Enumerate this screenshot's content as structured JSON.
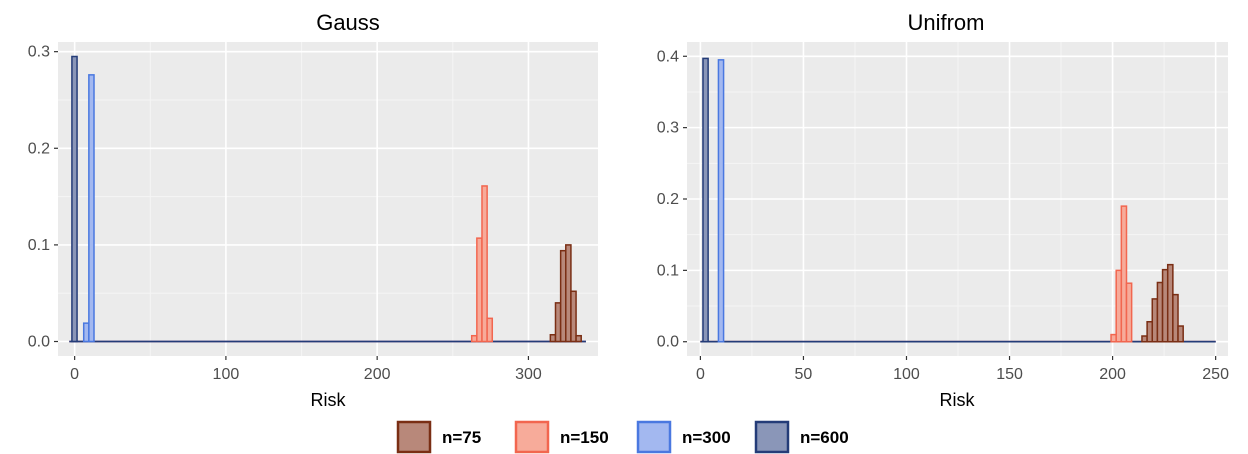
{
  "colors": {
    "panel_bg": "#ebebeb",
    "grid_major": "#ffffff",
    "grid_minor": "#f5f5f5",
    "n75": {
      "fill": "#b8887a",
      "stroke": "#7a2e14"
    },
    "n150": {
      "fill": "#f7ab9a",
      "stroke": "#f2664f"
    },
    "n300": {
      "fill": "#a3b8f0",
      "stroke": "#4a78e0"
    },
    "n600": {
      "fill": "#8a96b8",
      "stroke": "#243c78"
    }
  },
  "legend": [
    {
      "key": "n75",
      "label": "n=75"
    },
    {
      "key": "n150",
      "label": "n=150"
    },
    {
      "key": "n300",
      "label": "n=300"
    },
    {
      "key": "n600",
      "label": "n=600"
    }
  ],
  "chart_data": [
    {
      "type": "bar",
      "title": "Gauss",
      "xlabel": "Risk",
      "ylabel": "",
      "xlim": [
        -11,
        346
      ],
      "ylim": [
        -0.015,
        0.31
      ],
      "xticks": [
        0,
        100,
        200,
        300
      ],
      "yticks": [
        0.0,
        0.1,
        0.2,
        0.3
      ],
      "ytick_labels": [
        "0.0",
        "0.1",
        "0.2",
        "0.3"
      ],
      "bin_width": 3.4,
      "baseline_range": [
        -3.5,
        338
      ],
      "series": [
        {
          "name": "n=75",
          "key": "n75",
          "x": [
            314.5,
            317.9,
            321.3,
            324.7,
            328.1,
            331.5
          ],
          "values": [
            0.007,
            0.04,
            0.094,
            0.1,
            0.052,
            0.006
          ]
        },
        {
          "name": "n=150",
          "key": "n150",
          "x": [
            262.5,
            265.9,
            269.3,
            272.7
          ],
          "values": [
            0.006,
            0.107,
            0.161,
            0.024
          ]
        },
        {
          "name": "n=300",
          "key": "n300",
          "x": [
            6.0,
            9.4
          ],
          "values": [
            0.019,
            0.276
          ]
        },
        {
          "name": "n=600",
          "key": "n600",
          "x": [
            -1.8
          ],
          "values": [
            0.295
          ]
        }
      ]
    },
    {
      "type": "bar",
      "title": "Unifrom",
      "xlabel": "Risk",
      "ylabel": "",
      "xlim": [
        -6.5,
        256
      ],
      "ylim": [
        -0.02,
        0.42
      ],
      "xticks": [
        0,
        50,
        100,
        150,
        200,
        250
      ],
      "yticks": [
        0.0,
        0.1,
        0.2,
        0.3,
        0.4
      ],
      "ytick_labels": [
        "0.0",
        "0.1",
        "0.2",
        "0.3",
        "0.4"
      ],
      "bin_width": 2.5,
      "baseline_range": [
        0,
        250
      ],
      "series": [
        {
          "name": "n=75",
          "key": "n75",
          "x": [
            214.25,
            216.75,
            219.25,
            221.75,
            224.25,
            226.75,
            229.25,
            231.75
          ],
          "values": [
            0.008,
            0.028,
            0.06,
            0.083,
            0.101,
            0.108,
            0.066,
            0.022
          ]
        },
        {
          "name": "n=150",
          "key": "n150",
          "x": [
            199.25,
            201.75,
            204.25,
            206.75
          ],
          "values": [
            0.01,
            0.1,
            0.19,
            0.082
          ]
        },
        {
          "name": "n=300",
          "key": "n300",
          "x": [
            8.75
          ],
          "values": [
            0.395
          ]
        },
        {
          "name": "n=600",
          "key": "n600",
          "x": [
            1.25
          ],
          "values": [
            0.397
          ]
        }
      ]
    }
  ]
}
